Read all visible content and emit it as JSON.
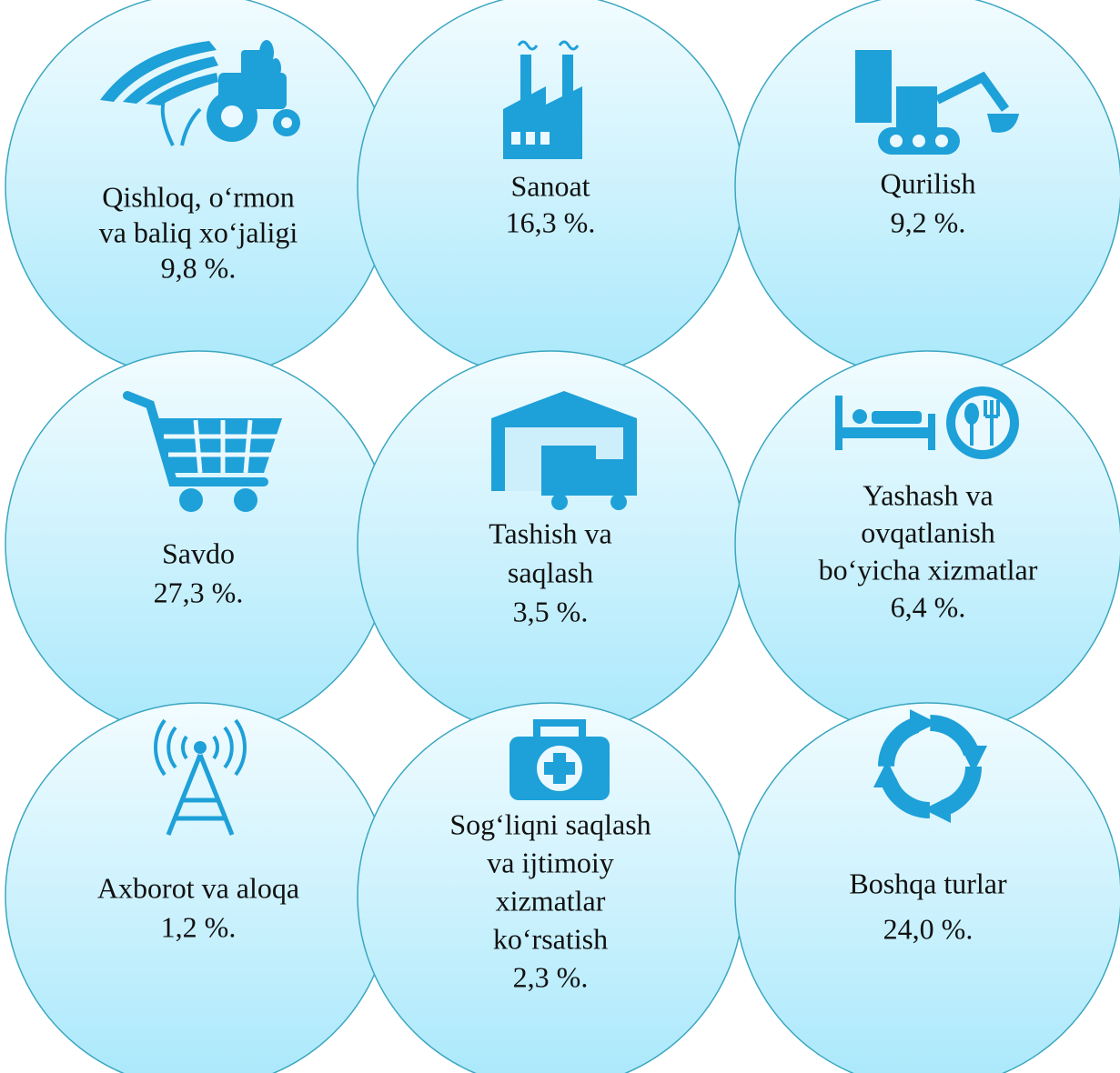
{
  "items": [
    {
      "lines": [
        "Qishloq, o‘rmon",
        "va baliq xo‘jaligi"
      ],
      "value": "9,8 %."
    },
    {
      "lines": [
        "Sanoat"
      ],
      "value": "16,3 %."
    },
    {
      "lines": [
        "Qurilish"
      ],
      "value": "9,2 %."
    },
    {
      "lines": [
        "Savdo"
      ],
      "value": "27,3 %."
    },
    {
      "lines": [
        "Tashish va",
        "saqlash"
      ],
      "value": "3,5 %."
    },
    {
      "lines": [
        "Yashash va",
        "ovqatlanish",
        "bo‘yicha xizmatlar"
      ],
      "value": "6,4 %."
    },
    {
      "lines": [
        "Axborot va aloqa"
      ],
      "value": "1,2 %."
    },
    {
      "lines": [
        "Sog‘liqni saqlash",
        "va ijtimoiy",
        "xizmatlar",
        "ko‘rsatish"
      ],
      "value": "2,3 %."
    },
    {
      "lines": [
        "Boshqa turlar"
      ],
      "value": "24,0 %."
    }
  ]
}
